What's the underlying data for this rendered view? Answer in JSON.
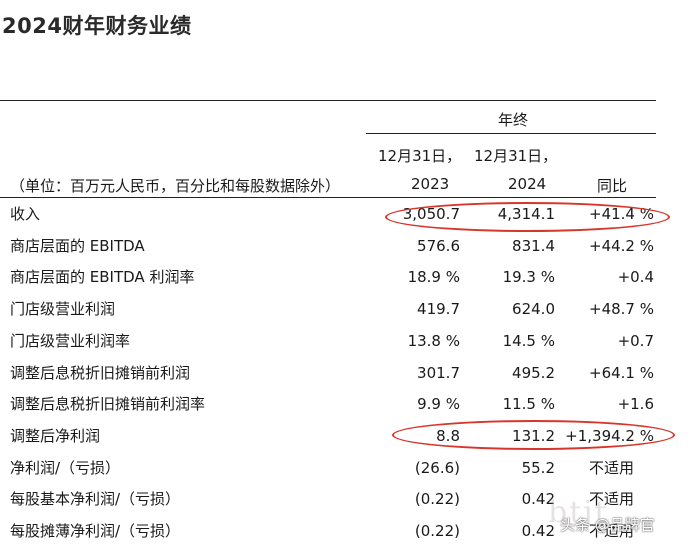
{
  "title": "2024财年财务业绩",
  "header": {
    "year_end": "年终",
    "date_col1": "12月31日，",
    "date_col2": "12月31日，",
    "unit_note": "（单位：百万元人民币，百分比和每股数据除外）",
    "year_col1": "2023",
    "year_col2": "2024",
    "yoy": "同比"
  },
  "rows": [
    {
      "label": "收入",
      "v2023": "3,050.7",
      "v2024": "4,314.1",
      "yoy": "+41.4 %"
    },
    {
      "label": "商店层面的 EBITDA",
      "v2023": "576.6",
      "v2024": "831.4",
      "yoy": "+44.2 %"
    },
    {
      "label": "商店层面的 EBITDA 利润率",
      "v2023": "18.9 %",
      "v2024": "19.3 %",
      "yoy": "+0.4"
    },
    {
      "label": "门店级营业利润",
      "v2023": "419.7",
      "v2024": "624.0",
      "yoy": "+48.7 %"
    },
    {
      "label": "门店级营业利润率",
      "v2023": "13.8 %",
      "v2024": "14.5 %",
      "yoy": "+0.7"
    },
    {
      "label": "调整后息税折旧摊销前利润",
      "v2023": "301.7",
      "v2024": "495.2",
      "yoy": "+64.1 %"
    },
    {
      "label": "调整后息税折旧摊销前利润率",
      "v2023": "9.9 %",
      "v2024": "11.5 %",
      "yoy": "+1.6"
    },
    {
      "label": "调整后净利润",
      "v2023": "8.8",
      "v2024": "131.2",
      "yoy": "+1,394.2 %"
    },
    {
      "label": "净利润/（亏损）",
      "v2023": "(26.6)",
      "v2024": "55.2",
      "yoy": "不适用"
    },
    {
      "label": "每股基本净利润/（亏损）",
      "v2023": "(0.22)",
      "v2024": "0.42",
      "yoy": "不适用"
    },
    {
      "label": "每股摊薄净利润/（亏损）",
      "v2023": "(0.22)",
      "v2024": "0.42",
      "yoy": "不适用"
    }
  ],
  "watermark": "头条 @品牌官",
  "watermark_bg": "btjt",
  "highlight_color": "#d8362a"
}
